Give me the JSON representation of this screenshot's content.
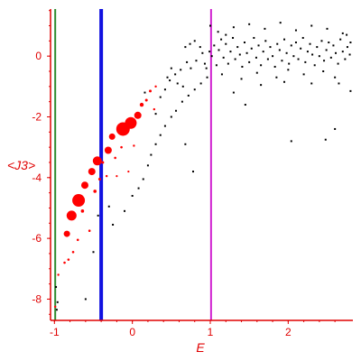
{
  "chart_data": {
    "type": "scatter",
    "title": "",
    "xlabel": "E",
    "ylabel": "<J3>",
    "xlim": [
      -1.05,
      2.83
    ],
    "ylim": [
      -8.7,
      1.55
    ],
    "x_ticks": [
      -1,
      0,
      1,
      2
    ],
    "y_ticks": [
      0,
      -2,
      -4,
      -6,
      -8
    ],
    "grid": false,
    "vertical_lines": [
      {
        "x": -0.99,
        "color": "#2e8b2e"
      },
      {
        "x": -0.4,
        "color": "#1010e0"
      },
      {
        "x": 1.01,
        "color": "#d020d0"
      }
    ],
    "colors": {
      "axis": "#e00000",
      "tick_text": "#e00000",
      "black_points": "#000000",
      "red_points": "#ff0000"
    },
    "red_points": [
      {
        "x": -0.99,
        "y": -8.25,
        "r": 1.2
      },
      {
        "x": -0.95,
        "y": -7.2,
        "r": 1.2
      },
      {
        "x": -0.87,
        "y": -6.8,
        "r": 1.3
      },
      {
        "x": -0.84,
        "y": -5.85,
        "r": 3.5
      },
      {
        "x": -0.78,
        "y": -5.25,
        "r": 5.5
      },
      {
        "x": -0.82,
        "y": -6.7,
        "r": 1.3
      },
      {
        "x": -0.76,
        "y": -6.45,
        "r": 1.3
      },
      {
        "x": -0.69,
        "y": -4.75,
        "r": 7
      },
      {
        "x": -0.7,
        "y": -6.05,
        "r": 1.3
      },
      {
        "x": -0.64,
        "y": -5.1,
        "r": 1.8
      },
      {
        "x": -0.61,
        "y": -4.25,
        "r": 4
      },
      {
        "x": -0.55,
        "y": -5.75,
        "r": 1.3
      },
      {
        "x": -0.52,
        "y": -3.8,
        "r": 4
      },
      {
        "x": -0.48,
        "y": -4.45,
        "r": 1.8
      },
      {
        "x": -0.45,
        "y": -3.45,
        "r": 5
      },
      {
        "x": -0.38,
        "y": -3.5,
        "r": 1.5
      },
      {
        "x": -0.42,
        "y": -4.05,
        "r": 1.5
      },
      {
        "x": -0.31,
        "y": -3.1,
        "r": 4
      },
      {
        "x": -0.33,
        "y": -3.95,
        "r": 1.2
      },
      {
        "x": -0.26,
        "y": -2.65,
        "r": 3.5
      },
      {
        "x": -0.22,
        "y": -3.35,
        "r": 1.3
      },
      {
        "x": -0.2,
        "y": -3.95,
        "r": 1.1
      },
      {
        "x": -0.12,
        "y": -2.4,
        "r": 7.5
      },
      {
        "x": -0.14,
        "y": -3.0,
        "r": 1.3
      },
      {
        "x": -0.02,
        "y": -2.2,
        "r": 6.5
      },
      {
        "x": -0.05,
        "y": -3.8,
        "r": 1.1
      },
      {
        "x": 0.07,
        "y": -1.95,
        "r": 4
      },
      {
        "x": 0.02,
        "y": -2.95,
        "r": 1.2
      },
      {
        "x": 0.12,
        "y": -1.6,
        "r": 2.2
      },
      {
        "x": 0.18,
        "y": -1.45,
        "r": 1.5
      },
      {
        "x": 0.23,
        "y": -1.15,
        "r": 1.5
      },
      {
        "x": 0.28,
        "y": -1.75,
        "r": 1.2
      },
      {
        "x": 0.3,
        "y": -1.0,
        "r": 1.2
      }
    ],
    "black_points": [
      {
        "x": -0.98,
        "y": -7.6
      },
      {
        "x": -0.97,
        "y": -8.35
      },
      {
        "x": -0.96,
        "y": -8.1
      },
      {
        "x": -0.6,
        "y": -8.0
      },
      {
        "x": -0.5,
        "y": -6.45
      },
      {
        "x": -0.44,
        "y": -5.25
      },
      {
        "x": -0.3,
        "y": -4.95
      },
      {
        "x": -0.25,
        "y": -5.55
      },
      {
        "x": -0.1,
        "y": -5.1
      },
      {
        "x": 0.0,
        "y": -4.6
      },
      {
        "x": 0.08,
        "y": -4.35
      },
      {
        "x": 0.14,
        "y": -4.05
      },
      {
        "x": 0.2,
        "y": -3.6
      },
      {
        "x": 0.24,
        "y": -3.25
      },
      {
        "x": 0.3,
        "y": -2.9
      },
      {
        "x": 0.36,
        "y": -2.6
      },
      {
        "x": 0.42,
        "y": -2.3
      },
      {
        "x": 0.5,
        "y": -2.0
      },
      {
        "x": 0.56,
        "y": -1.8
      },
      {
        "x": 0.64,
        "y": -1.5
      },
      {
        "x": 0.72,
        "y": -1.3
      },
      {
        "x": 0.8,
        "y": -1.1
      },
      {
        "x": 0.88,
        "y": -0.9
      },
      {
        "x": 0.96,
        "y": -0.7
      },
      {
        "x": 0.36,
        "y": -1.35
      },
      {
        "x": 0.42,
        "y": -1.1
      },
      {
        "x": 0.48,
        "y": -0.8
      },
      {
        "x": 0.55,
        "y": -0.6
      },
      {
        "x": 0.62,
        "y": -0.45
      },
      {
        "x": 0.7,
        "y": -0.2
      },
      {
        "x": 0.5,
        "y": -0.4
      },
      {
        "x": 0.58,
        "y": -0.9
      },
      {
        "x": 0.65,
        "y": -1.0
      },
      {
        "x": 0.75,
        "y": -0.4
      },
      {
        "x": 0.82,
        "y": -0.15
      },
      {
        "x": 0.9,
        "y": 0.1
      },
      {
        "x": 0.68,
        "y": 0.3
      },
      {
        "x": 0.74,
        "y": 0.4
      },
      {
        "x": 0.8,
        "y": 0.5
      },
      {
        "x": 0.87,
        "y": 0.3
      },
      {
        "x": 0.93,
        "y": -0.25
      },
      {
        "x": 0.99,
        "y": 0.15
      },
      {
        "x": 0.95,
        "y": -0.4
      },
      {
        "x": 0.78,
        "y": -3.8
      },
      {
        "x": 0.68,
        "y": -2.9
      },
      {
        "x": 0.3,
        "y": -1.9
      },
      {
        "x": 0.16,
        "y": -1.2
      },
      {
        "x": 0.45,
        "y": -0.7
      },
      {
        "x": 1.02,
        "y": 0.0
      },
      {
        "x": 1.05,
        "y": 0.35
      },
      {
        "x": 1.08,
        "y": -0.3
      },
      {
        "x": 1.11,
        "y": 0.2
      },
      {
        "x": 1.14,
        "y": 0.55
      },
      {
        "x": 1.17,
        "y": -0.05
      },
      {
        "x": 1.2,
        "y": 0.4
      },
      {
        "x": 1.23,
        "y": -0.25
      },
      {
        "x": 1.26,
        "y": 0.15
      },
      {
        "x": 1.29,
        "y": 0.6
      },
      {
        "x": 1.32,
        "y": -0.1
      },
      {
        "x": 1.35,
        "y": 0.3
      },
      {
        "x": 1.38,
        "y": 0.05
      },
      {
        "x": 1.41,
        "y": -0.35
      },
      {
        "x": 1.44,
        "y": 0.45
      },
      {
        "x": 1.47,
        "y": 0.1
      },
      {
        "x": 1.5,
        "y": -0.2
      },
      {
        "x": 1.53,
        "y": 0.25
      },
      {
        "x": 1.56,
        "y": 0.6
      },
      {
        "x": 1.59,
        "y": -0.05
      },
      {
        "x": 1.62,
        "y": 0.35
      },
      {
        "x": 1.65,
        "y": -0.3
      },
      {
        "x": 1.68,
        "y": 0.15
      },
      {
        "x": 1.71,
        "y": 0.5
      },
      {
        "x": 1.74,
        "y": -0.1
      },
      {
        "x": 1.77,
        "y": 0.3
      },
      {
        "x": 1.8,
        "y": 0.0
      },
      {
        "x": 1.83,
        "y": -0.35
      },
      {
        "x": 1.86,
        "y": 0.4
      },
      {
        "x": 1.89,
        "y": 0.2
      },
      {
        "x": 1.92,
        "y": -0.15
      },
      {
        "x": 1.95,
        "y": 0.55
      },
      {
        "x": 1.98,
        "y": 0.1
      },
      {
        "x": 2.01,
        "y": -0.25
      },
      {
        "x": 2.04,
        "y": 0.35
      },
      {
        "x": 2.07,
        "y": 0.0
      },
      {
        "x": 2.1,
        "y": 0.45
      },
      {
        "x": 2.13,
        "y": -0.1
      },
      {
        "x": 2.16,
        "y": 0.25
      },
      {
        "x": 2.19,
        "y": 0.6
      },
      {
        "x": 2.22,
        "y": -0.2
      },
      {
        "x": 2.25,
        "y": 0.15
      },
      {
        "x": 2.28,
        "y": 0.4
      },
      {
        "x": 2.31,
        "y": 0.05
      },
      {
        "x": 2.34,
        "y": -0.3
      },
      {
        "x": 2.37,
        "y": 0.3
      },
      {
        "x": 2.4,
        "y": 0.0
      },
      {
        "x": 2.43,
        "y": 0.5
      },
      {
        "x": 2.46,
        "y": -0.15
      },
      {
        "x": 2.49,
        "y": 0.2
      },
      {
        "x": 2.52,
        "y": 0.45
      },
      {
        "x": 2.55,
        "y": -0.05
      },
      {
        "x": 2.58,
        "y": 0.35
      },
      {
        "x": 2.61,
        "y": 0.1
      },
      {
        "x": 2.64,
        "y": -0.25
      },
      {
        "x": 2.67,
        "y": 0.55
      },
      {
        "x": 2.7,
        "y": 0.15
      },
      {
        "x": 2.73,
        "y": -0.1
      },
      {
        "x": 2.76,
        "y": 0.3
      },
      {
        "x": 2.79,
        "y": 0.05
      },
      {
        "x": 1.1,
        "y": 0.8
      },
      {
        "x": 1.3,
        "y": 0.95
      },
      {
        "x": 1.5,
        "y": 1.05
      },
      {
        "x": 1.7,
        "y": 0.9
      },
      {
        "x": 1.9,
        "y": 1.1
      },
      {
        "x": 2.1,
        "y": 0.85
      },
      {
        "x": 2.3,
        "y": 1.0
      },
      {
        "x": 2.5,
        "y": 0.9
      },
      {
        "x": 2.7,
        "y": 0.75
      },
      {
        "x": 2.8,
        "y": 0.45
      },
      {
        "x": 1.0,
        "y": 1.0
      },
      {
        "x": 1.2,
        "y": 0.7
      },
      {
        "x": 1.15,
        "y": -0.6
      },
      {
        "x": 1.4,
        "y": -0.75
      },
      {
        "x": 1.6,
        "y": -0.55
      },
      {
        "x": 1.85,
        "y": -0.7
      },
      {
        "x": 2.0,
        "y": -0.45
      },
      {
        "x": 2.2,
        "y": -0.6
      },
      {
        "x": 2.45,
        "y": -0.5
      },
      {
        "x": 2.6,
        "y": -0.7
      },
      {
        "x": 2.8,
        "y": -1.15
      },
      {
        "x": 1.3,
        "y": -1.2
      },
      {
        "x": 1.45,
        "y": -1.6
      },
      {
        "x": 2.04,
        "y": -2.8
      },
      {
        "x": 2.48,
        "y": -2.75
      },
      {
        "x": 2.6,
        "y": -2.4
      },
      {
        "x": 1.65,
        "y": -0.95
      },
      {
        "x": 1.95,
        "y": -0.85
      },
      {
        "x": 2.3,
        "y": -0.9
      },
      {
        "x": 2.65,
        "y": -0.9
      },
      {
        "x": 2.75,
        "y": 0.7
      }
    ]
  }
}
